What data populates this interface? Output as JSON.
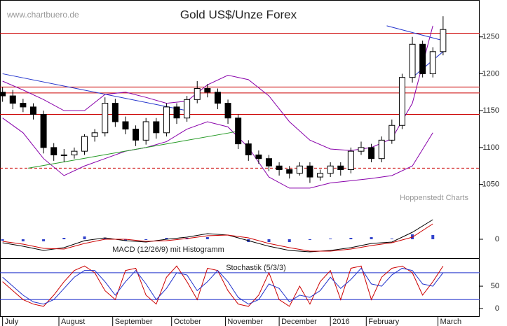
{
  "chart_data": {
    "type": "candlestick",
    "title": "Gold US$/Unze Forex",
    "watermark": "www.chartbuero.de",
    "source": "Hoppenstedt Charts",
    "xlim": [
      -1,
      186
    ],
    "xticks": [
      {
        "value": 0,
        "label": "July"
      },
      {
        "value": 22,
        "label": "August"
      },
      {
        "value": 43,
        "label": "September"
      },
      {
        "value": 66,
        "label": "October"
      },
      {
        "value": 87,
        "label": "November"
      },
      {
        "value": 108,
        "label": "December"
      },
      {
        "value": 128,
        "label": "2016"
      },
      {
        "value": 142,
        "label": "February"
      },
      {
        "value": 170,
        "label": "March"
      }
    ],
    "ylim": [
      951,
      1300
    ],
    "yticks": [
      1050,
      1100,
      1150,
      1200,
      1250
    ],
    "x": [
      0,
      4,
      8,
      12,
      16,
      20,
      24,
      28,
      32,
      36,
      40,
      44,
      48,
      52,
      56,
      60,
      64,
      68,
      72,
      76,
      80,
      84,
      88,
      92,
      96,
      100,
      104,
      108,
      112,
      116,
      120,
      124,
      128,
      132,
      136,
      140,
      144,
      148,
      152,
      156,
      160,
      164,
      168,
      172
    ],
    "open": [
      1175,
      1170,
      1160,
      1155,
      1145,
      1100,
      1090,
      1090,
      1095,
      1115,
      1120,
      1160,
      1135,
      1125,
      1110,
      1135,
      1120,
      1155,
      1140,
      1165,
      1180,
      1175,
      1160,
      1140,
      1105,
      1090,
      1085,
      1075,
      1070,
      1065,
      1075,
      1060,
      1065,
      1075,
      1070,
      1095,
      1100,
      1085,
      1110,
      1130,
      1195,
      1240,
      1200,
      1230
    ],
    "high": [
      1182,
      1178,
      1166,
      1160,
      1150,
      1106,
      1098,
      1100,
      1118,
      1125,
      1168,
      1166,
      1142,
      1130,
      1140,
      1140,
      1160,
      1160,
      1170,
      1190,
      1186,
      1180,
      1165,
      1145,
      1110,
      1096,
      1090,
      1080,
      1075,
      1080,
      1080,
      1070,
      1080,
      1080,
      1100,
      1108,
      1105,
      1115,
      1138,
      1200,
      1250,
      1245,
      1236,
      1278
    ],
    "low": [
      1162,
      1152,
      1148,
      1138,
      1092,
      1082,
      1080,
      1085,
      1090,
      1108,
      1115,
      1128,
      1118,
      1102,
      1104,
      1112,
      1115,
      1132,
      1135,
      1160,
      1168,
      1152,
      1132,
      1098,
      1082,
      1078,
      1068,
      1062,
      1058,
      1062,
      1052,
      1055,
      1060,
      1062,
      1065,
      1090,
      1080,
      1080,
      1105,
      1125,
      1188,
      1195,
      1195,
      1225
    ],
    "close": [
      1170,
      1160,
      1155,
      1145,
      1100,
      1090,
      1090,
      1095,
      1115,
      1120,
      1160,
      1135,
      1125,
      1110,
      1135,
      1120,
      1155,
      1140,
      1165,
      1180,
      1175,
      1160,
      1140,
      1105,
      1090,
      1085,
      1075,
      1070,
      1065,
      1075,
      1060,
      1065,
      1075,
      1070,
      1095,
      1100,
      1085,
      1110,
      1130,
      1195,
      1240,
      1200,
      1230,
      1260
    ],
    "levels": [
      1255,
      1182,
      1174,
      1145
    ],
    "dashed_level": 1072,
    "bollinger": {
      "x": [
        0,
        8,
        16,
        24,
        32,
        40,
        48,
        56,
        64,
        72,
        80,
        88,
        96,
        104,
        112,
        120,
        128,
        136,
        144,
        152,
        160,
        168
      ],
      "upper": [
        1190,
        1178,
        1165,
        1150,
        1150,
        1172,
        1175,
        1168,
        1160,
        1163,
        1185,
        1198,
        1192,
        1170,
        1135,
        1110,
        1098,
        1096,
        1100,
        1112,
        1160,
        1265
      ],
      "lower": [
        1140,
        1120,
        1085,
        1062,
        1075,
        1085,
        1095,
        1100,
        1108,
        1125,
        1135,
        1128,
        1100,
        1060,
        1045,
        1045,
        1052,
        1055,
        1058,
        1062,
        1075,
        1120
      ]
    },
    "trendlines": [
      {
        "color": "#2233cc",
        "x": [
          0,
          72
        ],
        "y": [
          1200,
          1150
        ]
      },
      {
        "color": "#229922",
        "x": [
          10,
          92
        ],
        "y": [
          1072,
          1122
        ]
      },
      {
        "color": "#2233cc",
        "x": [
          150,
          172
        ],
        "y": [
          1265,
          1245
        ]
      },
      {
        "color": "#2233cc",
        "x": [
          160,
          172
        ],
        "y": [
          1195,
          1230
        ]
      }
    ],
    "macd": {
      "label": "MACD (12/26/9) mit Histogramm",
      "ylim": [
        -26,
        47
      ],
      "yticks": [
        0
      ],
      "x": [
        0,
        8,
        16,
        24,
        32,
        40,
        48,
        56,
        64,
        72,
        80,
        88,
        96,
        104,
        112,
        120,
        128,
        136,
        144,
        152,
        160,
        168
      ],
      "macd": [
        -5,
        -10,
        -16,
        -12,
        -2,
        2,
        -2,
        -4,
        0,
        3,
        8,
        6,
        -2,
        -10,
        -16,
        -18,
        -16,
        -12,
        -6,
        -4,
        10,
        28
      ],
      "signal": [
        -3,
        -7,
        -13,
        -14,
        -6,
        0,
        0,
        -3,
        -2,
        1,
        5,
        6,
        2,
        -6,
        -12,
        -17,
        -17,
        -14,
        -9,
        -5,
        3,
        22
      ],
      "histogram": [
        -2,
        -3,
        -3,
        2,
        4,
        2,
        -2,
        -1,
        2,
        2,
        3,
        0,
        -4,
        -4,
        -4,
        -1,
        1,
        2,
        3,
        1,
        7,
        6
      ]
    },
    "stochastic": {
      "label": "Stochastik (5/3/3)",
      "ylim": [
        -17,
        111
      ],
      "yticks": [
        0,
        50
      ],
      "levels": [
        20,
        80
      ],
      "k": [
        60,
        40,
        20,
        10,
        5,
        30,
        60,
        85,
        95,
        80,
        40,
        20,
        85,
        90,
        30,
        10,
        70,
        95,
        60,
        20,
        90,
        85,
        40,
        10,
        5,
        30,
        80,
        20,
        5,
        50,
        10,
        60,
        85,
        20,
        90,
        95,
        20,
        70,
        90,
        95,
        80,
        30,
        60,
        95
      ],
      "d": [
        70,
        50,
        30,
        15,
        10,
        20,
        45,
        70,
        85,
        85,
        60,
        30,
        60,
        85,
        55,
        20,
        45,
        80,
        75,
        40,
        60,
        85,
        60,
        25,
        10,
        20,
        55,
        45,
        15,
        30,
        25,
        40,
        70,
        45,
        65,
        90,
        55,
        50,
        75,
        90,
        85,
        55,
        50,
        80
      ]
    }
  }
}
